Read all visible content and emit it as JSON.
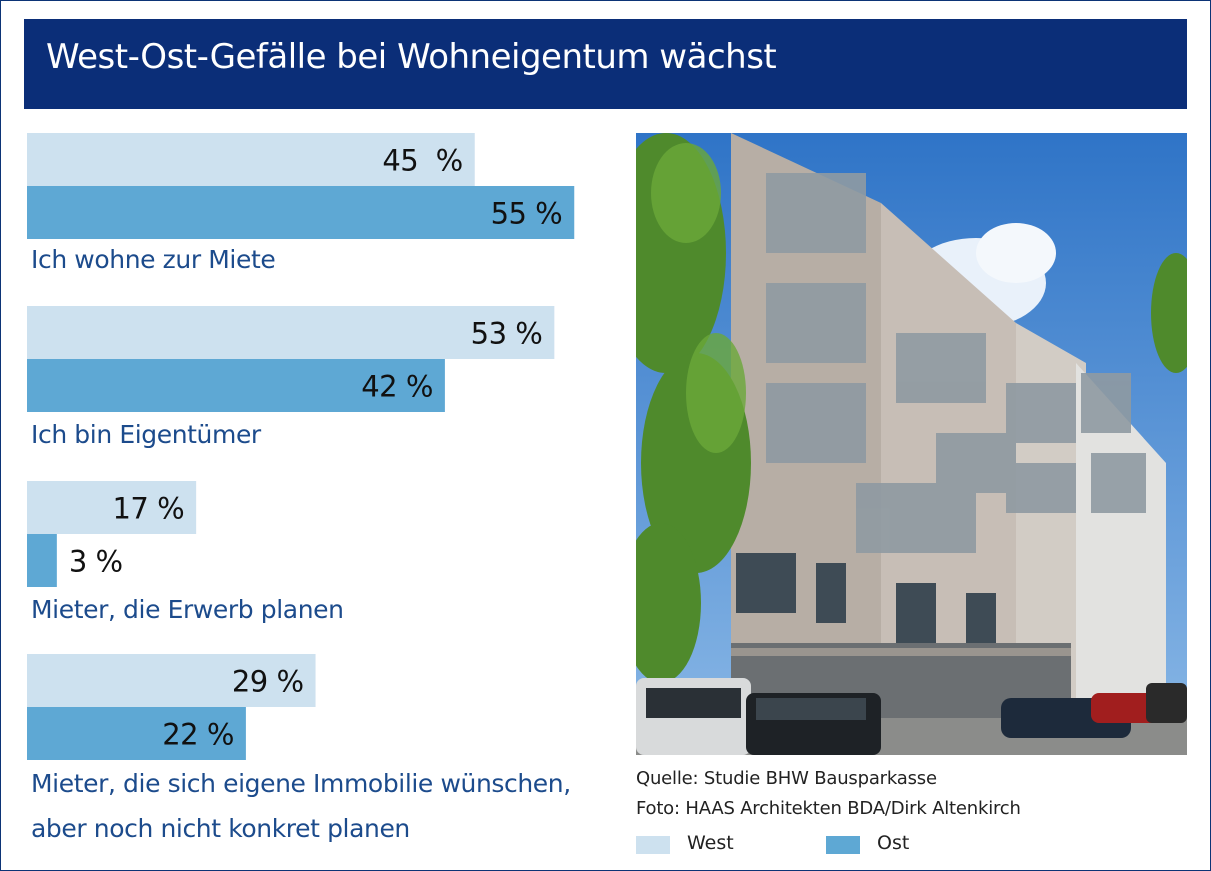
{
  "header": {
    "title": "West-Ost-Gefälle bei Wohneigentum wächst"
  },
  "colors": {
    "west": "#cde1ef",
    "ost": "#5ea8d4",
    "title_bg": "#0b2e78",
    "label": "#1c4b8c"
  },
  "chart_data": {
    "type": "bar",
    "orientation": "horizontal",
    "unit": "%",
    "categories": [
      "Ich wohne zur Miete",
      "Ich bin Eigentümer",
      "Mieter, die Erwerb planen",
      "Mieter, die sich eigene Immobilie wünschen, aber noch nicht konkret planen"
    ],
    "series": [
      {
        "name": "West",
        "values": [
          45,
          53,
          17,
          29
        ],
        "labels": [
          "45  %",
          "53 %",
          "17 %",
          "29 %"
        ]
      },
      {
        "name": "Ost",
        "values": [
          55,
          42,
          3,
          22
        ],
        "labels": [
          "55 %",
          "42 %",
          "3 %",
          "22 %"
        ]
      }
    ],
    "legend": {
      "position": "bottom-right",
      "items": [
        "West",
        "Ost"
      ]
    }
  },
  "labels": {
    "cat1": "Ich wohne zur Miete",
    "cat2": "Ich bin Eigentümer",
    "cat3": "Mieter, die Erwerb planen",
    "cat4_line1": "Mieter, die sich eigene Immobilie wünschen,",
    "cat4_line2": "aber noch nicht konkret planen"
  },
  "captions": {
    "source": "Quelle: Studie BHW Bausparkasse",
    "photo": "Foto: HAAS Architekten BDA/Dirk Altenkirch"
  },
  "legend": {
    "west": "West",
    "ost": "Ost"
  }
}
